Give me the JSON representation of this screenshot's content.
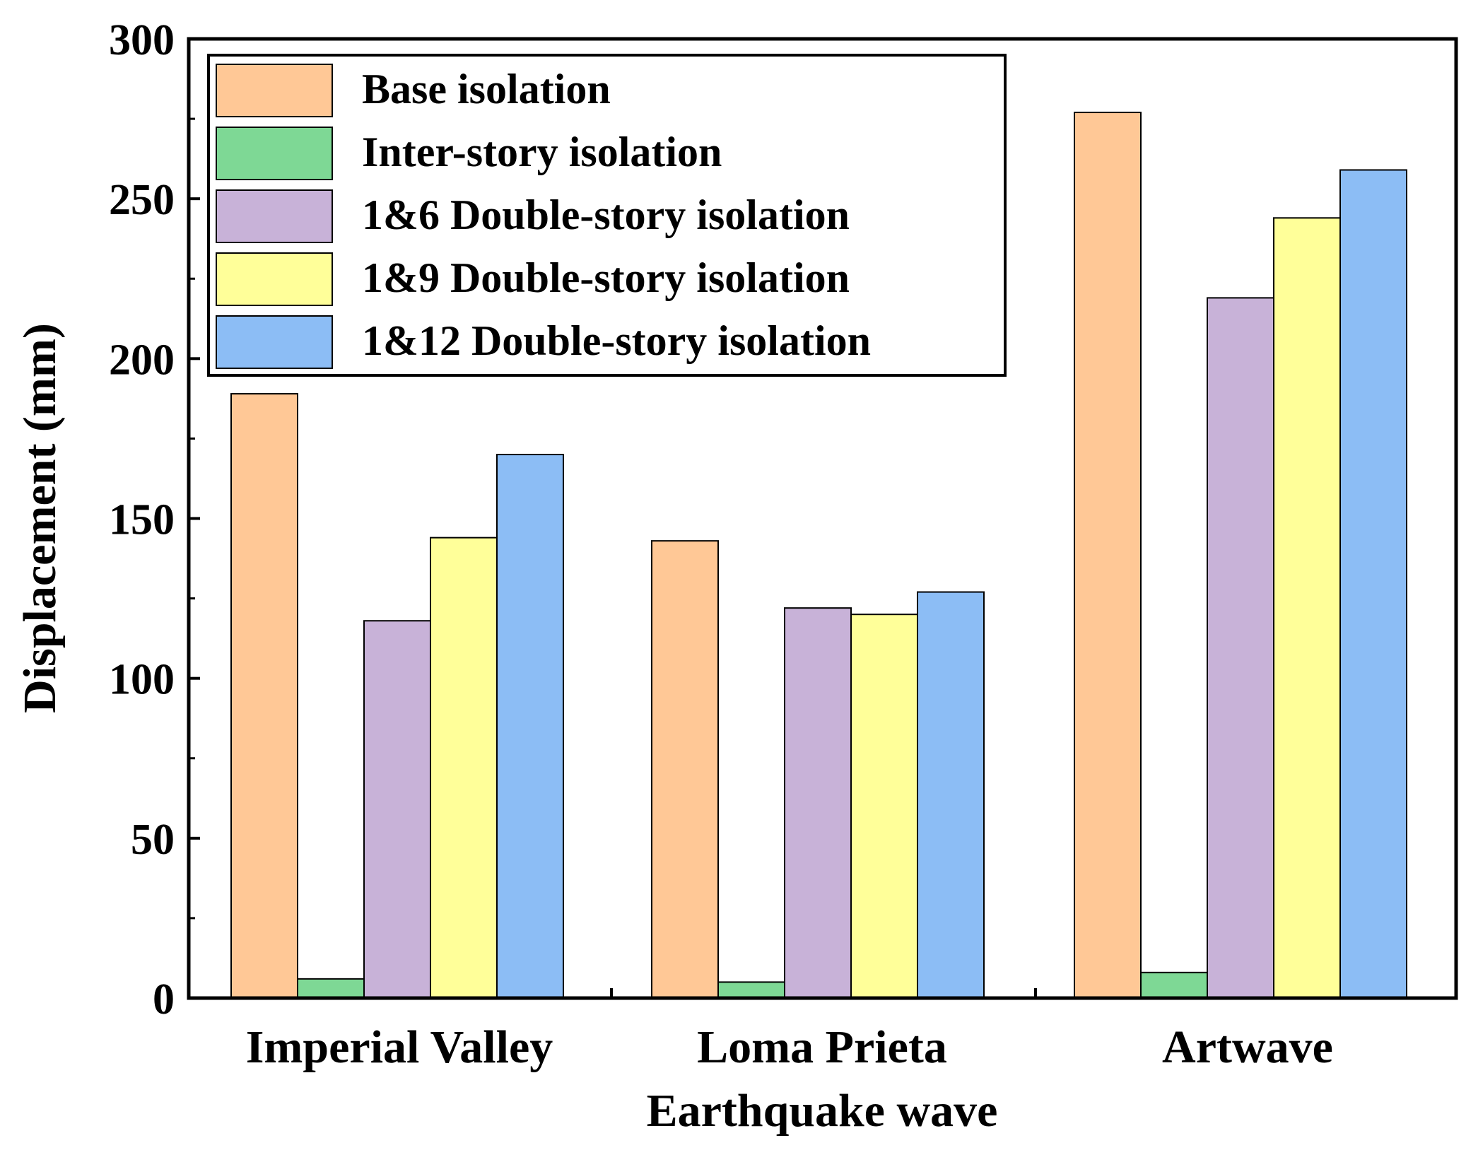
{
  "chart_data": {
    "type": "bar",
    "title": "",
    "xlabel": "Earthquake wave",
    "ylabel": "Displacement (mm)",
    "ylim": [
      0,
      300
    ],
    "yticks": [
      "0",
      "50",
      "100",
      "150",
      "200",
      "250",
      "300"
    ],
    "categories": [
      "Imperial Valley",
      "Loma Prieta",
      "Artwave"
    ],
    "series": [
      {
        "name": "Base isolation",
        "color": "#FFC896",
        "values": [
          189,
          143,
          277
        ]
      },
      {
        "name": "Inter-story isolation",
        "color": "#7ED895",
        "values": [
          6,
          5,
          8
        ]
      },
      {
        "name": "1&6 Double-story isolation",
        "color": "#C8B2D8",
        "values": [
          118,
          122,
          219
        ]
      },
      {
        "name": "1&9 Double-story isolation",
        "color": "#FFFF99",
        "values": [
          144,
          120,
          244
        ]
      },
      {
        "name": "1&12 Double-story isolation",
        "color": "#8CBDF5",
        "values": [
          170,
          127,
          259
        ]
      }
    ],
    "legend_position": "top-left",
    "grid": false
  }
}
